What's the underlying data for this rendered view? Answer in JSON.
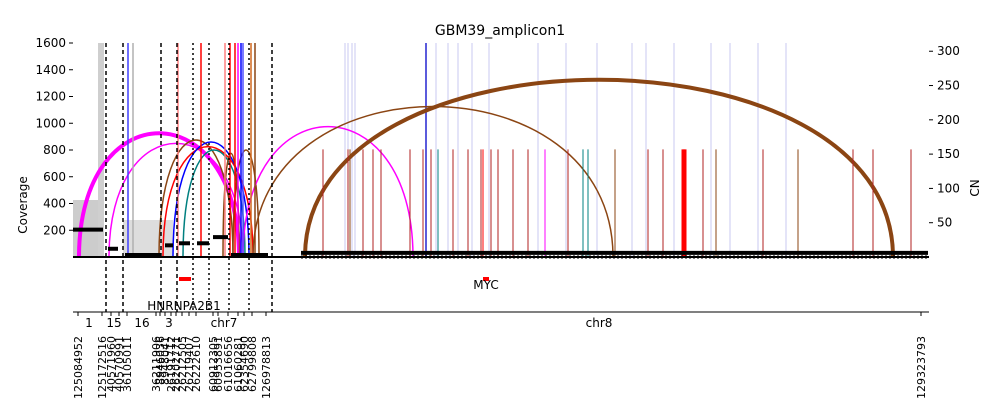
{
  "chart_data": {
    "type": "line",
    "title": "GBM39_amplicon1",
    "ylabel_left": "Coverage",
    "ylabel_right": "CN",
    "left_ticks": [
      200,
      400,
      600,
      800,
      1000,
      1200,
      1400,
      1600
    ],
    "left_ylim": [
      0,
      1600
    ],
    "right_ticks": [
      50,
      100,
      150,
      200,
      250,
      300
    ],
    "right_ylim": [
      0,
      312
    ],
    "gene_labels": [
      {
        "text": "HNRNPA2B1",
        "color": "#ff0000"
      },
      {
        "text": "MYC",
        "color": "#ff0000"
      }
    ],
    "chromosomes": [
      "1",
      "15",
      "16",
      "3",
      "chr7",
      "chr8"
    ],
    "positions": [
      "125084952",
      "125172516",
      "40571960",
      "40570991",
      "36105011",
      "36211906",
      "8946036",
      "8948041",
      "26191712",
      "26202771",
      "26212505",
      "26219407",
      "26222610",
      "60912305",
      "60953891",
      "61016656",
      "61060281",
      "62354690",
      "62799808",
      "126978813",
      "129323793"
    ],
    "segments": [
      {
        "chrom": "1",
        "x_start": 0,
        "x_end": 30,
        "cn": 40
      },
      {
        "chrom": "15",
        "x_start": 35,
        "x_end": 45,
        "cn": 12
      },
      {
        "chrom": "16",
        "x_start": 52,
        "x_end": 88,
        "cn": 3
      },
      {
        "chrom": "3",
        "x_start": 92,
        "x_end": 100,
        "cn": 17
      },
      {
        "chrom": "3",
        "x_start": 106,
        "x_end": 117,
        "cn": 20
      },
      {
        "chrom": "chr7",
        "x_start": 124,
        "x_end": 136,
        "cn": 20
      },
      {
        "chrom": "chr7",
        "x_start": 140,
        "x_end": 155,
        "cn": 29
      },
      {
        "chrom": "chr7",
        "x_start": 158,
        "x_end": 195,
        "cn": 3
      },
      {
        "chrom": "chr8",
        "x_start": 228,
        "x_end": 855,
        "cn": 6
      }
    ],
    "breakpoints": [
      {
        "x1": 6,
        "x2": 166,
        "cn": 185,
        "color": "#ff00ff"
      },
      {
        "x1": 36,
        "x2": 170,
        "cn": 170,
        "color": "#ff00ff"
      },
      {
        "x1": 86,
        "x2": 160,
        "cn": 175,
        "color": "#8b4513"
      },
      {
        "x1": 90,
        "x2": 180,
        "cn": 165,
        "color": "#ff0000"
      },
      {
        "x1": 100,
        "x2": 176,
        "cn": 172,
        "color": "#0000ff"
      },
      {
        "x1": 110,
        "x2": 172,
        "cn": 160,
        "color": "#008080"
      },
      {
        "x1": 150,
        "x2": 166,
        "cn": 155,
        "color": "#8b4513"
      },
      {
        "x1": 160,
        "x2": 186,
        "cn": 160,
        "color": "#8b4513"
      },
      {
        "x1": 170,
        "x2": 340,
        "cn": 195,
        "color": "#ff00ff"
      },
      {
        "x1": 180,
        "x2": 540,
        "cn": 225,
        "color": "#8b4513"
      },
      {
        "x1": 232,
        "x2": 820,
        "cn": 265,
        "color": "#8b4513"
      }
    ],
    "grid": false,
    "legend": "none"
  }
}
